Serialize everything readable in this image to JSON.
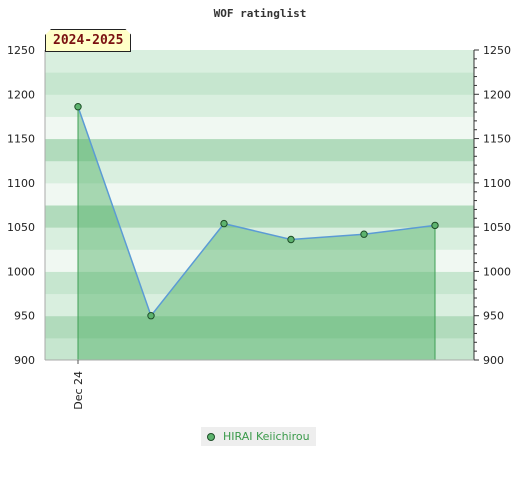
{
  "chart_data": {
    "type": "area",
    "title": "WOF ratinglist",
    "season_label": "2024-2025",
    "x_tick_labels": [
      "Dec 24"
    ],
    "series": [
      {
        "name": "HIRAI Keiichirou",
        "values": [
          1186,
          950,
          1054,
          1036,
          1042,
          1052
        ]
      }
    ],
    "ylim": [
      900,
      1250
    ],
    "y_ticks": [
      900,
      950,
      1000,
      1050,
      1100,
      1150,
      1200,
      1250
    ],
    "legend_position": "bottom-center",
    "colors": {
      "line": "#5b9bd5",
      "fill": "#4caf62",
      "marker": "#5db36e",
      "marker_stroke": "#1d4d27",
      "band_light": "#f0f8f2",
      "band_pale": "#d9efdf",
      "band_mid": "#c6e6cf",
      "band_strong": "#b1dbbc"
    }
  }
}
